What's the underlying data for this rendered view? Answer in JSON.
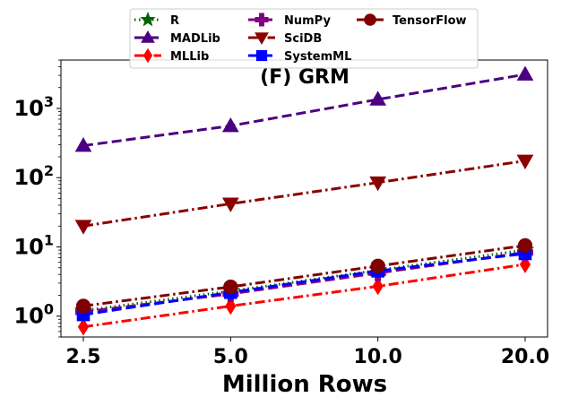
{
  "chart_data": {
    "type": "line",
    "title": "(F) GRM",
    "xlabel": "Million Rows",
    "ylabel": "",
    "x": [
      2.5,
      5.0,
      10.0,
      20.0
    ],
    "x_tick_labels": [
      "2.5",
      "5.0",
      "10.0",
      "20.0"
    ],
    "y_scale": "log",
    "ylim": [
      0.5,
      5000
    ],
    "y_ticks": [
      1,
      10,
      100,
      1000
    ],
    "y_tick_labels": [
      {
        "base": "10",
        "exp": "0"
      },
      {
        "base": "10",
        "exp": "1"
      },
      {
        "base": "10",
        "exp": "2"
      },
      {
        "base": "10",
        "exp": "3"
      }
    ],
    "grid": false,
    "legend_position": "top-center (above plot)",
    "series": [
      {
        "name": "R",
        "values": [
          1.2,
          2.3,
          4.6,
          9.0
        ],
        "color": "#006400",
        "dash": "dot",
        "marker": "star"
      },
      {
        "name": "MADLib",
        "values": [
          290,
          560,
          1350,
          3100
        ],
        "color": "#4b0082",
        "dash": "dash",
        "marker": "triangle-up"
      },
      {
        "name": "MLLib",
        "values": [
          0.7,
          1.4,
          2.7,
          5.6
        ],
        "color": "#ff0000",
        "dash": "dashdot",
        "marker": "diamond"
      },
      {
        "name": "NumPy",
        "values": [
          1.15,
          2.1,
          4.2,
          8.3
        ],
        "color": "#800080",
        "dash": "dash",
        "marker": "plus"
      },
      {
        "name": "SciDB",
        "values": [
          20,
          42,
          85,
          175
        ],
        "color": "#8b0000",
        "dash": "dashdot",
        "marker": "triangle-down"
      },
      {
        "name": "SystemML",
        "values": [
          1.05,
          2.2,
          4.5,
          8.0
        ],
        "color": "#0000ff",
        "dash": "dash",
        "marker": "square"
      },
      {
        "name": "TensorFlow",
        "values": [
          1.4,
          2.65,
          5.3,
          10.5
        ],
        "color": "#800000",
        "dash": "dashdot",
        "marker": "circle"
      }
    ]
  }
}
